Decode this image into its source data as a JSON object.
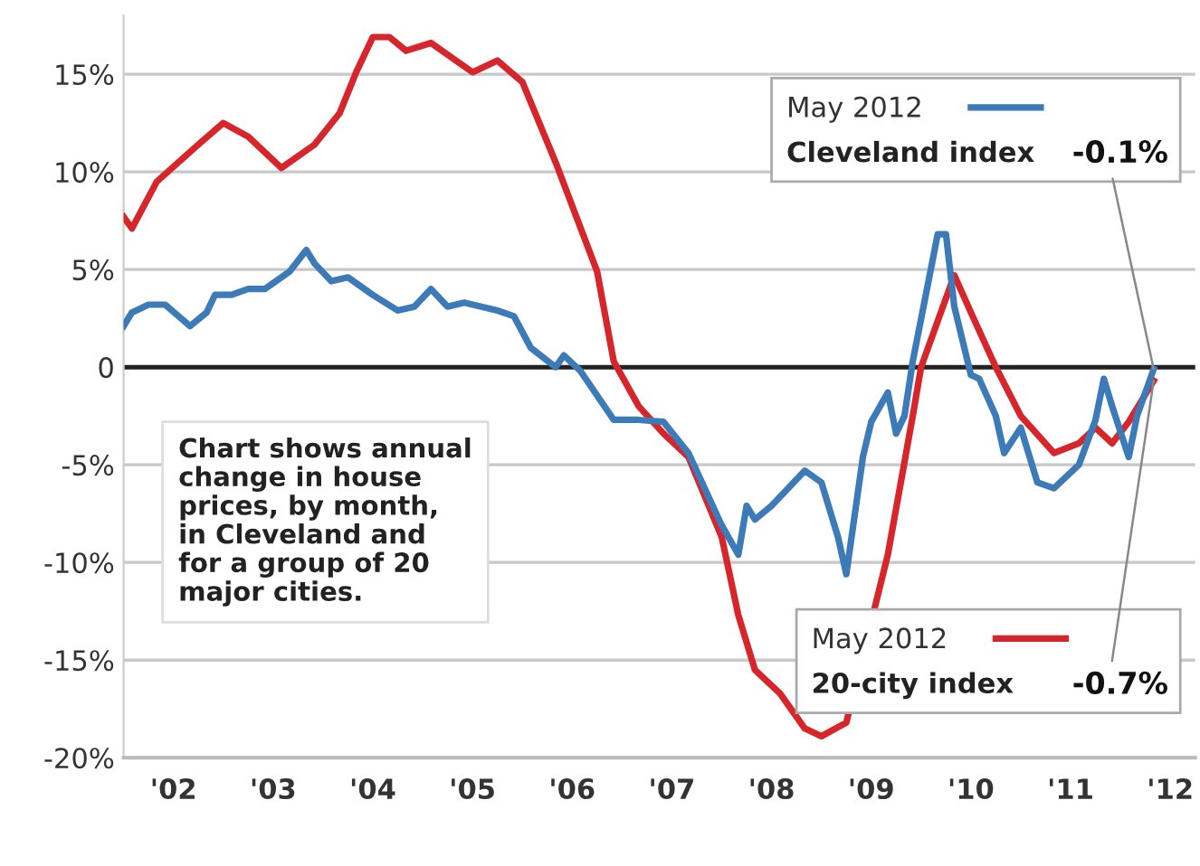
{
  "chart_data": {
    "type": "line",
    "xlim": [
      "2002-01",
      "2012-10"
    ],
    "xticks": [
      {
        "value": "2002-07",
        "label": "'02"
      },
      {
        "value": "2003-07",
        "label": "'03"
      },
      {
        "value": "2004-07",
        "label": "'04"
      },
      {
        "value": "2005-07",
        "label": "'05"
      },
      {
        "value": "2006-07",
        "label": "'06"
      },
      {
        "value": "2007-07",
        "label": "'07"
      },
      {
        "value": "2008-07",
        "label": "'08"
      },
      {
        "value": "2009-07",
        "label": "'09"
      },
      {
        "value": "2010-07",
        "label": "'10"
      },
      {
        "value": "2011-07",
        "label": "'11"
      },
      {
        "value": "2012-07",
        "label": "'12"
      }
    ],
    "ylim": [
      -20,
      18
    ],
    "yticks": [
      {
        "value": -20,
        "label": "-20%"
      },
      {
        "value": -15,
        "label": "-15%"
      },
      {
        "value": -10,
        "label": "-10%"
      },
      {
        "value": -5,
        "label": "-5%"
      },
      {
        "value": 0,
        "label": "0"
      },
      {
        "value": 5,
        "label": "5%"
      },
      {
        "value": 10,
        "label": "10%"
      },
      {
        "value": 15,
        "label": "15%"
      }
    ],
    "grid": "y",
    "ref_lines": [
      {
        "axis": "y",
        "value": 0,
        "color": "#222222"
      }
    ],
    "series": [
      {
        "name": "20-city index",
        "color": "#d7262b",
        "x": [
          "2002-01",
          "2002-02",
          "2002-05",
          "2002-10",
          "2003-01",
          "2003-04",
          "2003-08",
          "2003-12",
          "2004-03",
          "2004-05",
          "2004-07",
          "2004-09",
          "2004-11",
          "2005-02",
          "2005-07",
          "2005-10",
          "2006-01",
          "2006-05",
          "2006-10",
          "2006-12",
          "2007-03",
          "2007-06",
          "2007-09",
          "2008-01",
          "2008-03",
          "2008-05",
          "2008-08",
          "2008-11",
          "2009-01",
          "2009-04",
          "2009-09",
          "2009-12",
          "2010-01",
          "2010-05",
          "2010-07",
          "2010-10",
          "2011-01",
          "2011-05",
          "2011-08",
          "2011-10",
          "2011-12",
          "2012-02",
          "2012-05"
        ],
        "values": [
          7.7,
          7.1,
          9.5,
          11.4,
          12.5,
          11.8,
          10.2,
          11.4,
          13.0,
          15.1,
          16.9,
          16.9,
          16.2,
          16.6,
          15.1,
          15.7,
          14.6,
          10.5,
          4.9,
          0.3,
          -2.0,
          -3.4,
          -4.6,
          -8.7,
          -12.7,
          -15.5,
          -16.7,
          -18.5,
          -18.9,
          -18.2,
          -9.6,
          -2.5,
          0,
          4.7,
          2.8,
          0,
          -2.5,
          -4.4,
          -3.9,
          -3.1,
          -3.9,
          -2.8,
          -0.7
        ]
      },
      {
        "name": "Cleveland index",
        "color": "#3d7ab8",
        "x": [
          "2002-01",
          "2002-02",
          "2002-04",
          "2002-06",
          "2002-09",
          "2002-11",
          "2002-12",
          "2003-02",
          "2003-04",
          "2003-06",
          "2003-09",
          "2003-11",
          "2003-12",
          "2004-02",
          "2004-04",
          "2004-07",
          "2004-10",
          "2004-12",
          "2005-02",
          "2005-04",
          "2005-06",
          "2005-10",
          "2005-12",
          "2006-02",
          "2006-05",
          "2006-06",
          "2006-08",
          "2006-12",
          "2007-03",
          "2007-06",
          "2007-09",
          "2008-01",
          "2008-03",
          "2008-04",
          "2008-05",
          "2008-07",
          "2008-11",
          "2009-01",
          "2009-03",
          "2009-04",
          "2009-06",
          "2009-07",
          "2009-09",
          "2009-10",
          "2009-11",
          "2009-12",
          "2010-03",
          "2010-04",
          "2010-05",
          "2010-07",
          "2010-08",
          "2010-10",
          "2010-11",
          "2011-01",
          "2011-03",
          "2011-05",
          "2011-08",
          "2011-10",
          "2011-11",
          "2011-12",
          "2012-02",
          "2012-03",
          "2012-05"
        ],
        "values": [
          2.1,
          2.8,
          3.2,
          3.2,
          2.1,
          2.8,
          3.7,
          3.7,
          4.0,
          4.0,
          4.9,
          6.0,
          5.3,
          4.4,
          4.6,
          3.7,
          2.9,
          3.1,
          4.0,
          3.1,
          3.3,
          2.9,
          2.6,
          1.0,
          0,
          0.6,
          -0.2,
          -2.7,
          -2.7,
          -2.8,
          -4.4,
          -8.1,
          -9.6,
          -7.1,
          -7.8,
          -7.1,
          -5.3,
          -5.9,
          -8.7,
          -10.6,
          -4.6,
          -2.8,
          -1.3,
          -3.4,
          -2.5,
          0.3,
          6.8,
          6.8,
          3.1,
          -0.4,
          -0.6,
          -2.5,
          -4.4,
          -3.1,
          -5.9,
          -6.2,
          -5.0,
          -2.7,
          -0.6,
          -2.0,
          -4.6,
          -2.5,
          -0.1
        ]
      }
    ],
    "legend": "right",
    "annotations": [
      "Chart shows annual\nchange in house\nprices, by month,\nin Cleveland and\nfor a group of 20\nmajor cities.",
      "May 2012",
      "May 2012",
      {
        "text": "-0.7%",
        "x": "2012-05",
        "y": -0.7
      },
      {
        "text": "-0.1%",
        "x": "2012-05",
        "y": -0.1
      }
    ]
  }
}
